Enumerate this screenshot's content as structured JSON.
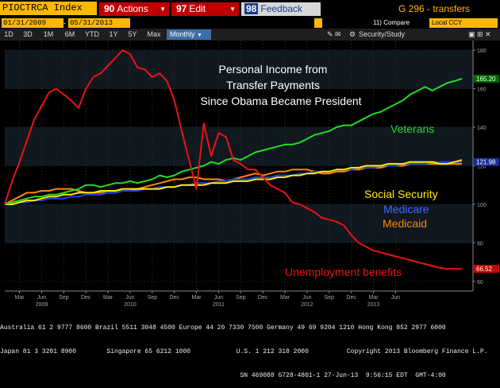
{
  "toolbar": {
    "ticker": "PIOCTRCA Index",
    "actions_num": "90",
    "actions_label": "Actions",
    "edit_num": "97",
    "edit_label": "Edit",
    "feedback_num": "98",
    "feedback_label": "Feedback",
    "screen_name": "G 296 - transfers"
  },
  "dates": {
    "start": "01/31/2009",
    "end": "05/31/2013",
    "compare_label": "11) Compare",
    "currency": "Local CCY"
  },
  "periods": [
    "1D",
    "3D",
    "1M",
    "6M",
    "YTD",
    "1Y",
    "5Y",
    "Max"
  ],
  "frequency": "Monthly",
  "security_study": "Security/Study",
  "colors": {
    "unemployment": "#ee1111",
    "veterans": "#22dd22",
    "social_security": "#ffee00",
    "medicare": "#2244dd",
    "medicaid": "#ff8800",
    "orange": "#ffb800"
  },
  "chart_data": {
    "type": "line",
    "title": "Personal Income from Transfer Payments Since Obama Became President",
    "title_lines": [
      "Personal Income from",
      "Transfer Payments",
      "Since Obama Became President"
    ],
    "ylim": [
      55,
      185
    ],
    "y_ticks": [
      60,
      80,
      100,
      120,
      140,
      160,
      180
    ],
    "x_ticks": [
      {
        "month": "Mar",
        "year": ""
      },
      {
        "month": "Jun",
        "year": "2009"
      },
      {
        "month": "Sep",
        "year": ""
      },
      {
        "month": "Dec",
        "year": ""
      },
      {
        "month": "Mar",
        "year": ""
      },
      {
        "month": "Jun",
        "year": "2010"
      },
      {
        "month": "Sep",
        "year": ""
      },
      {
        "month": "Dec",
        "year": ""
      },
      {
        "month": "Mar",
        "year": ""
      },
      {
        "month": "Jun",
        "year": "2011"
      },
      {
        "month": "Sep",
        "year": ""
      },
      {
        "month": "Dec",
        "year": ""
      },
      {
        "month": "Mar",
        "year": ""
      },
      {
        "month": "Jun",
        "year": "2012"
      },
      {
        "month": "Sep",
        "year": ""
      },
      {
        "month": "Dec",
        "year": ""
      },
      {
        "month": "Mar",
        "year": "2013"
      },
      {
        "month": "Jun",
        "year": ""
      }
    ],
    "x_start": "2009-01",
    "series": [
      {
        "name": "Unemployment benefits",
        "color": "#ee1111",
        "last_label": "66.52",
        "values": [
          100,
          112,
          122,
          133,
          144,
          151,
          158,
          160,
          157,
          154,
          150,
          160,
          166,
          168,
          172,
          176,
          180,
          178,
          171,
          170,
          166,
          168,
          164,
          154,
          138,
          123,
          108,
          142,
          125,
          137,
          135,
          123,
          121,
          118,
          118,
          114,
          110,
          108,
          106,
          101,
          100,
          98,
          96,
          93,
          92,
          91,
          89,
          84,
          80,
          78,
          76,
          75,
          74,
          73,
          72,
          71,
          70,
          69,
          68,
          67,
          66.5,
          66.5,
          66.52
        ]
      },
      {
        "name": "Veterans",
        "color": "#22dd22",
        "last_label": "165.20",
        "values": [
          100,
          101,
          102,
          103,
          104,
          104,
          105,
          105,
          106,
          107,
          108,
          110,
          110,
          109,
          110,
          111,
          111,
          112,
          111,
          112,
          113,
          115,
          114,
          115,
          117,
          118,
          119,
          120,
          122,
          121,
          123,
          124,
          123,
          125,
          127,
          128,
          129,
          130,
          131,
          131,
          132,
          134,
          136,
          137,
          138,
          140,
          141,
          141,
          143,
          145,
          147,
          148,
          150,
          152,
          154,
          157,
          159,
          161,
          159,
          161,
          163,
          164,
          165.2
        ]
      },
      {
        "name": "Social Security",
        "color": "#ffee00",
        "values": [
          100,
          100,
          101,
          102,
          102,
          103,
          104,
          104,
          105,
          105,
          106,
          106,
          106,
          107,
          107,
          107,
          108,
          108,
          108,
          108,
          108,
          108,
          109,
          109,
          110,
          110,
          110,
          110,
          111,
          111,
          111,
          112,
          112,
          112,
          113,
          113,
          113,
          114,
          114,
          115,
          115,
          116,
          116,
          117,
          117,
          118,
          118,
          119,
          119,
          120,
          120,
          120,
          121,
          121,
          121,
          122,
          122,
          122,
          122,
          121,
          121,
          122,
          123
        ]
      },
      {
        "name": "Medicare",
        "color": "#2244dd",
        "values": [
          100,
          100,
          101,
          101,
          102,
          102,
          103,
          103,
          103,
          104,
          104,
          105,
          105,
          105,
          106,
          106,
          107,
          107,
          107,
          108,
          108,
          109,
          109,
          109,
          110,
          110,
          111,
          111,
          111,
          112,
          112,
          113,
          113,
          113,
          114,
          114,
          114,
          115,
          115,
          115,
          116,
          116,
          117,
          117,
          117,
          118,
          118,
          118,
          119,
          119,
          119,
          120,
          120,
          120,
          121,
          121,
          121,
          121,
          122,
          122,
          122,
          122,
          122
        ]
      },
      {
        "name": "Medicaid",
        "color": "#ff8800",
        "values": [
          100,
          102,
          104,
          106,
          106,
          107,
          107,
          108,
          108,
          108,
          107,
          106,
          106,
          106,
          106,
          106,
          107,
          107,
          108,
          109,
          110,
          111,
          112,
          113,
          113,
          114,
          114,
          113,
          113,
          113,
          112,
          113,
          114,
          115,
          116,
          115,
          116,
          117,
          117,
          118,
          118,
          118,
          117,
          116,
          116,
          117,
          117,
          118,
          118,
          119,
          119,
          119,
          120,
          120,
          120,
          121,
          121,
          121,
          121,
          121,
          121,
          121,
          121
        ]
      }
    ],
    "series_labels": [
      {
        "name": "Veterans"
      },
      {
        "name": "Social Security"
      },
      {
        "name": "Medicare"
      },
      {
        "name": "Medicaid"
      },
      {
        "name": "Unemployment benefits"
      }
    ],
    "value_tags": [
      "165.20",
      "121.98",
      "66.52"
    ]
  },
  "footer": {
    "line1": "Australia 61 2 9777 8600 Brazil 5511 3048 4500 Europe 44 20 7330 7500 Germany 49 69 9204 1210 Hong Kong 852 2977 6000",
    "line2": "Japan 81 3 3201 8900        Singapore 65 6212 1000            U.S. 1 212 318 2000          Copyright 2013 Bloomberg Finance L.P.",
    "line3": "                                                               SN 469088 G728-4801-1 27-Jun-13  9:56:15 EDT  GMT-4:00"
  }
}
